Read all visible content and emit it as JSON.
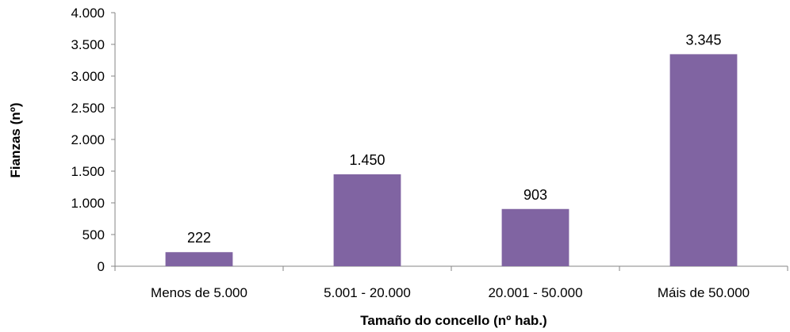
{
  "chart_data": {
    "type": "bar",
    "categories": [
      "Menos de 5.000",
      "5.001 - 20.000",
      "20.001 - 50.000",
      "Máis de 50.000"
    ],
    "values": [
      222,
      1450,
      903,
      3345
    ],
    "data_labels": [
      "222",
      "1.450",
      "903",
      "3.345"
    ],
    "xlabel": "Tamaño do concello (nº hab.)",
    "ylabel": "Fianzas (nº)",
    "ylim": [
      0,
      4000
    ],
    "yticks": [
      0,
      500,
      1000,
      1500,
      2000,
      2500,
      3000,
      3500,
      4000
    ],
    "ytick_labels": [
      "0",
      "500",
      "1.000",
      "1.500",
      "2.000",
      "2.500",
      "3.000",
      "3.500",
      "4.000"
    ],
    "grid": false,
    "legend": "none",
    "colors": {
      "bar": "#8064a2",
      "axis": "#868686"
    }
  }
}
